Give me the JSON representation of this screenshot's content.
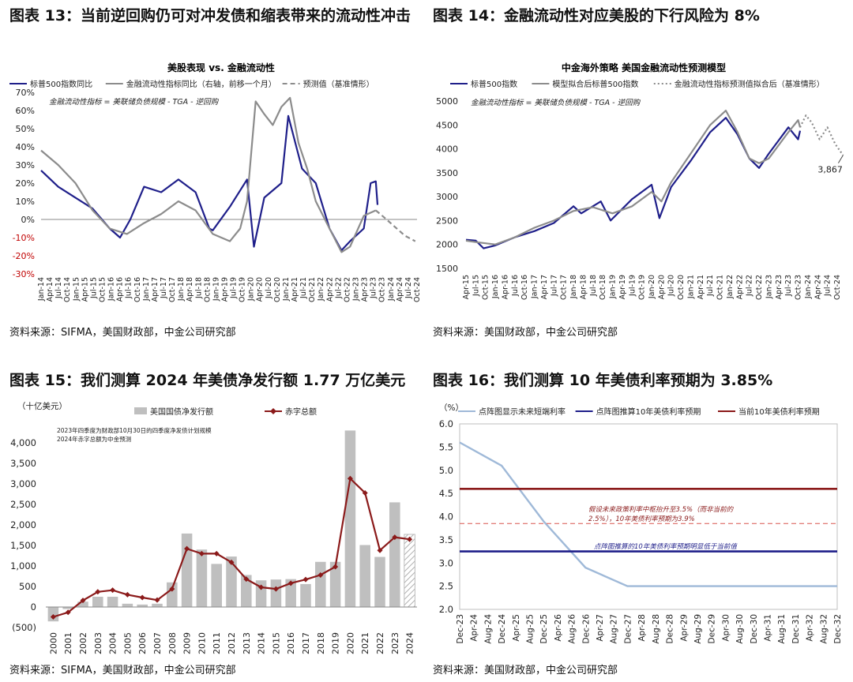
{
  "panels": [
    {
      "title": "图表 13：当前逆回购仍可对冲发债和缩表带来的流动性冲击",
      "source": "资料来源：SIFMA，美国财政部，中金公司研究部"
    },
    {
      "title": "图表 14：金融流动性对应美股的下行风险为 8%",
      "source": "资料来源：美国财政部，中金公司研究部"
    },
    {
      "title": "图表 15：我们测算 2024 年美债净发行额 1.77 万亿美元",
      "source": "资料来源：SIFMA，美国财政部，中金公司研究部"
    },
    {
      "title": "图表 16：我们测算 10 年美债利率预期为 3.85%",
      "source": "资料来源：美国财政部，中金公司研究部"
    }
  ],
  "chart_data": [
    {
      "type": "line",
      "title": "美股表现 vs. 金融流动性",
      "annotation": "金融流动性指标 = 美联储负债规模 - TGA - 逆回购",
      "ylim": [
        -30,
        70
      ],
      "yticks": [
        "70%",
        "60%",
        "50%",
        "40%",
        "30%",
        "20%",
        "10%",
        "0%",
        "-10%",
        "-20%",
        "-30%"
      ],
      "xticks": [
        "Jan-14",
        "Apr-14",
        "Jul-14",
        "Oct-14",
        "Jan-15",
        "Apr-15",
        "Jul-15",
        "Oct-15",
        "Jan-16",
        "Apr-16",
        "Jul-16",
        "Oct-16",
        "Jan-17",
        "Apr-17",
        "Jul-17",
        "Oct-17",
        "Jan-18",
        "Apr-18",
        "Jul-18",
        "Oct-18",
        "Jan-19",
        "Apr-19",
        "Jul-19",
        "Oct-19",
        "Jan-20",
        "Apr-20",
        "Jul-20",
        "Oct-20",
        "Jan-21",
        "Apr-21",
        "Jul-21",
        "Oct-21",
        "Jan-22",
        "Apr-22",
        "Jul-22",
        "Oct-22",
        "Jan-23",
        "Apr-23",
        "Jul-23",
        "Oct-23",
        "Jan-24",
        "Apr-24",
        "Jul-24",
        "Oct-24"
      ],
      "series": [
        {
          "name": "标普500指数同比",
          "color": "#1f1f8a",
          "style": "solid",
          "x": [
            2014.0,
            2014.5,
            2015.0,
            2015.5,
            2016.0,
            2016.3,
            2016.6,
            2017.0,
            2017.5,
            2018.0,
            2018.5,
            2018.9,
            2019.0,
            2019.5,
            2020.0,
            2020.2,
            2020.5,
            2021.0,
            2021.2,
            2021.6,
            2022.0,
            2022.4,
            2022.75,
            2023.0,
            2023.4,
            2023.6,
            2023.75,
            2023.8
          ],
          "values": [
            27,
            18,
            12,
            6,
            -5,
            -10,
            0,
            18,
            15,
            22,
            15,
            -5,
            -6,
            7,
            22,
            -15,
            12,
            20,
            57,
            28,
            20,
            -5,
            -17,
            -12,
            -5,
            20,
            21,
            8
          ]
        },
        {
          "name": "金融流动性指标同比（右轴，前移一个月）",
          "color": "#8c8c8c",
          "style": "solid",
          "x": [
            2014.0,
            2014.5,
            2015.0,
            2015.5,
            2016.0,
            2016.5,
            2017.0,
            2017.5,
            2018.0,
            2018.5,
            2019.0,
            2019.5,
            2019.8,
            2020.0,
            2020.25,
            2020.5,
            2020.75,
            2021.0,
            2021.25,
            2021.5,
            2021.75,
            2022.0,
            2022.4,
            2022.75,
            2023.0,
            2023.4,
            2023.75
          ],
          "values": [
            38,
            30,
            20,
            5,
            -5,
            -8,
            -2,
            3,
            10,
            5,
            -8,
            -12,
            -5,
            10,
            65,
            58,
            52,
            62,
            67,
            42,
            28,
            10,
            -5,
            -18,
            -15,
            2,
            5
          ]
        },
        {
          "name": "预测值（基准情形）",
          "color": "#8c8c8c",
          "style": "dashed",
          "x": [
            2023.75,
            2024.0,
            2024.3,
            2024.6,
            2024.9
          ],
          "values": [
            5,
            1,
            -4,
            -9,
            -12
          ]
        }
      ]
    },
    {
      "type": "line",
      "title": "中金海外策略  美国金融流动性预测模型",
      "annotation": "金融流动性指标 = 美联储负债规模 - TGA - 逆回购",
      "ylim": [
        1500,
        5000
      ],
      "yticks": [
        "5000",
        "4500",
        "4000",
        "3500",
        "3000",
        "2500",
        "2000",
        "1500"
      ],
      "xticks": [
        "Apr-15",
        "Jul-15",
        "Oct-15",
        "Jan-16",
        "Apr-16",
        "Jul-16",
        "Oct-16",
        "Jan-17",
        "Apr-17",
        "Jul-17",
        "Oct-17",
        "Jan-18",
        "Apr-18",
        "Jul-18",
        "Oct-18",
        "Jan-19",
        "Apr-19",
        "Jul-19",
        "Oct-19",
        "Jan-20",
        "Apr-20",
        "Jul-20",
        "Oct-20",
        "Jan-21",
        "Apr-21",
        "Jul-21",
        "Oct-21",
        "Jan-22",
        "Apr-22",
        "Jul-22",
        "Oct-22",
        "Jan-23",
        "Apr-23",
        "Jul-23",
        "Oct-23",
        "Jan-24",
        "Apr-24",
        "Jul-24",
        "Oct-24"
      ],
      "end_label": "3,867",
      "series": [
        {
          "name": "标普500指数",
          "color": "#1f1f8a",
          "style": "solid",
          "x": [
            2015.25,
            2015.5,
            2015.7,
            2016.0,
            2016.5,
            2017.0,
            2017.5,
            2018.0,
            2018.2,
            2018.7,
            2018.95,
            2019.5,
            2020.0,
            2020.2,
            2020.5,
            2021.0,
            2021.5,
            2021.9,
            2022.2,
            2022.5,
            2022.75,
            2023.0,
            2023.5,
            2023.75,
            2023.8
          ],
          "values": [
            2100,
            2080,
            1920,
            1980,
            2150,
            2280,
            2450,
            2800,
            2650,
            2900,
            2500,
            2950,
            3250,
            2550,
            3200,
            3750,
            4350,
            4650,
            4300,
            3800,
            3600,
            3900,
            4450,
            4200,
            4380
          ]
        },
        {
          "name": "模型拟合后标普500指数",
          "color": "#8c8c8c",
          "style": "solid",
          "x": [
            2015.25,
            2015.5,
            2016.0,
            2016.5,
            2017.0,
            2017.5,
            2018.0,
            2018.5,
            2019.0,
            2019.5,
            2020.0,
            2020.25,
            2020.5,
            2021.0,
            2021.5,
            2021.9,
            2022.2,
            2022.5,
            2022.75,
            2023.0,
            2023.5,
            2023.75,
            2023.8
          ],
          "values": [
            2080,
            2050,
            2000,
            2150,
            2350,
            2500,
            2700,
            2780,
            2650,
            2800,
            3100,
            2900,
            3300,
            3900,
            4500,
            4800,
            4350,
            3800,
            3700,
            3800,
            4350,
            4600,
            4450
          ]
        },
        {
          "name": "金融流动性指标预测值拟合后（基准情形）",
          "color": "#8c8c8c",
          "style": "dotted",
          "x": [
            2023.8,
            2023.95,
            2024.1,
            2024.3,
            2024.5,
            2024.7,
            2024.9
          ],
          "values": [
            4450,
            4700,
            4550,
            4200,
            4450,
            4100,
            3867
          ]
        }
      ]
    },
    {
      "type": "bar",
      "title": "",
      "unit": "（十亿美元）",
      "notes": [
        "2023年四季度为财政部10月30日的四季度净发债计划规模",
        "2024年赤字总额为中金预测"
      ],
      "ylim": [
        -500,
        4500
      ],
      "yticks": [
        "4,000",
        "3,500",
        "3,000",
        "2,500",
        "2,000",
        "1,500",
        "1,000",
        "500",
        "0",
        "(500)"
      ],
      "categories": [
        "2000",
        "2001",
        "2002",
        "2003",
        "2004",
        "2005",
        "2006",
        "2007",
        "2008",
        "2009",
        "2010",
        "2011",
        "2012",
        "2013",
        "2014",
        "2015",
        "2016",
        "2017",
        "2018",
        "2019",
        "2020",
        "2021",
        "2022",
        "2023",
        "2024"
      ],
      "series": [
        {
          "name": "美国国债净发行额",
          "color": "#bfbfbf",
          "values": [
            -350,
            -50,
            130,
            250,
            250,
            80,
            60,
            80,
            600,
            1790,
            1400,
            1050,
            1230,
            780,
            650,
            670,
            680,
            560,
            1100,
            1100,
            4300,
            1510,
            1220,
            2550,
            1770
          ]
        },
        {
          "name": "赤字总额",
          "color": "#8b1a1a",
          "values": [
            -240,
            -130,
            160,
            370,
            410,
            300,
            230,
            170,
            440,
            1420,
            1300,
            1300,
            1090,
            680,
            480,
            440,
            580,
            670,
            780,
            980,
            3130,
            2780,
            1380,
            1700,
            1650
          ]
        }
      ]
    },
    {
      "type": "line",
      "title": "",
      "unit": "（%）",
      "ylim": [
        2.0,
        6.0
      ],
      "yticks": [
        "6.0",
        "5.5",
        "5.0",
        "4.5",
        "4.0",
        "3.5",
        "3.0",
        "2.5",
        "2.0"
      ],
      "xticks": [
        "Dec-23",
        "Apr-24",
        "Aug-24",
        "Dec-24",
        "Apr-25",
        "Aug-25",
        "Dec-25",
        "Apr-26",
        "Aug-26",
        "Dec-26",
        "Apr-27",
        "Aug-27",
        "Dec-27",
        "Apr-28",
        "Aug-28",
        "Dec-28",
        "Apr-29",
        "Aug-29",
        "Dec-29",
        "Apr-30",
        "Aug-30",
        "Dec-30",
        "Apr-31",
        "Aug-31",
        "Dec-31",
        "Apr-32",
        "Aug-32",
        "Dec-32"
      ],
      "annotations": [
        "假设未来政策利率中枢抬升至3.5%（而非当前的2.5%），10年美债利率预期为3.9%",
        "点阵图推算的10年美债利率预期明显低于当前值"
      ],
      "series": [
        {
          "name": "点阵图显示未来短端利率",
          "color": "#9fb9d8",
          "style": "solid",
          "x": [
            "Dec-23",
            "Dec-24",
            "Dec-25",
            "Dec-26",
            "Dec-27",
            "Dec-28",
            "Dec-29",
            "Dec-30",
            "Dec-31",
            "Dec-32"
          ],
          "values": [
            5.6,
            5.1,
            3.9,
            2.9,
            2.5,
            2.5,
            2.5,
            2.5,
            2.5,
            2.5
          ]
        },
        {
          "name": "点阵图推算10年美债利率预期",
          "color": "#1f1f8a",
          "style": "solid",
          "x": [
            "Dec-23",
            "Dec-32"
          ],
          "values": [
            3.25,
            3.25
          ]
        },
        {
          "name": "当前10年美债利率预期",
          "color": "#8b1a1a",
          "style": "solid",
          "x": [
            "Dec-23",
            "Dec-32"
          ],
          "values": [
            4.6,
            4.6
          ]
        },
        {
          "name": "",
          "color": "#d9534f",
          "style": "dashed",
          "x": [
            "Dec-23",
            "Dec-32"
          ],
          "values": [
            3.85,
            3.85
          ]
        }
      ]
    }
  ]
}
